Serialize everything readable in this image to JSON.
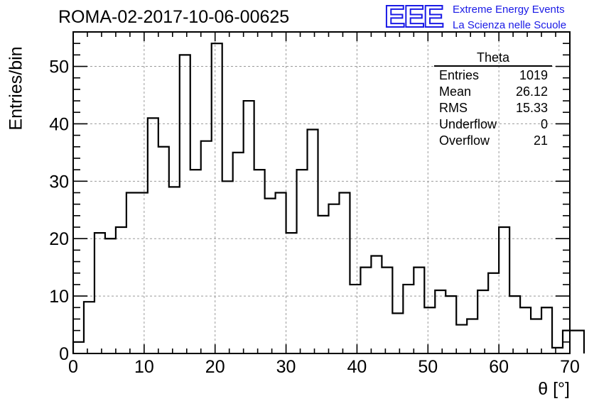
{
  "title": "ROMA-02-2017-10-06-00625",
  "logo": {
    "mark": "EEE",
    "line1": "Extreme Energy Events",
    "line2": "La Scienza nelle Scuole",
    "color": "#1a1ae6"
  },
  "stats_box": {
    "title": "Theta",
    "rows": [
      {
        "label": "Entries",
        "value": "1019"
      },
      {
        "label": "Mean",
        "value": "26.12"
      },
      {
        "label": "RMS",
        "value": "15.33"
      },
      {
        "label": "Underflow",
        "value": "0"
      },
      {
        "label": "Overflow",
        "value": "21"
      }
    ]
  },
  "chart_data": {
    "type": "bar",
    "style": "step-histogram",
    "title": "ROMA-02-2017-10-06-00625",
    "xlabel": "θ [°]",
    "ylabel": "Entries/bin",
    "xlim": [
      0,
      70
    ],
    "ylim": [
      0,
      56
    ],
    "x_ticks": [
      0,
      10,
      20,
      30,
      40,
      50,
      60,
      70
    ],
    "y_ticks": [
      0,
      10,
      20,
      30,
      40,
      50
    ],
    "grid": true,
    "bin_width": 1.5,
    "x_start": 0,
    "values": [
      2,
      9,
      21,
      20,
      22,
      28,
      28,
      41,
      36,
      29,
      52,
      32,
      37,
      54,
      30,
      35,
      44,
      32,
      27,
      28,
      21,
      32,
      39,
      24,
      26,
      28,
      12,
      15,
      17,
      15,
      7,
      12,
      15,
      8,
      11,
      10,
      5,
      6,
      11,
      14,
      22,
      10,
      8,
      6,
      8,
      1,
      4,
      4
    ]
  }
}
